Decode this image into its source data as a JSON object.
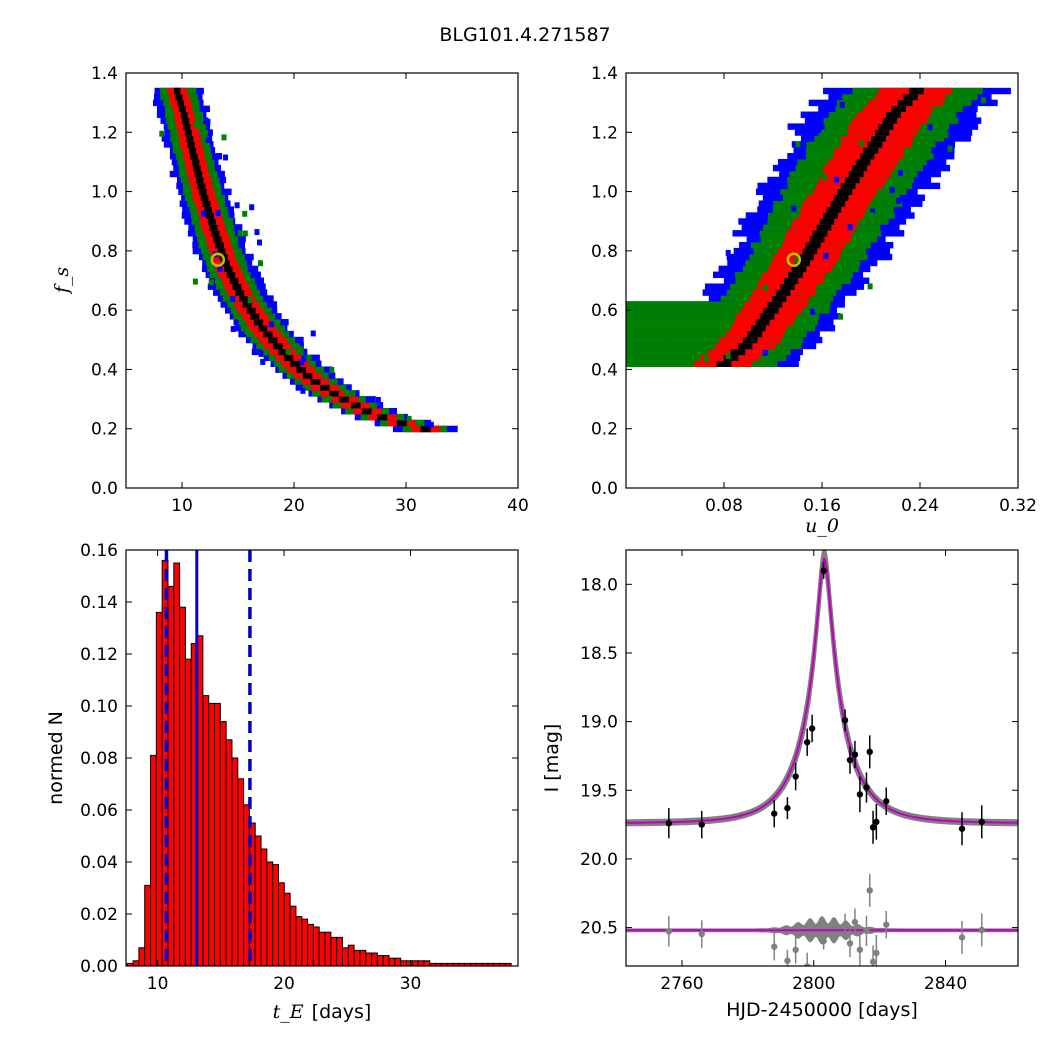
{
  "figure": {
    "title": "BLG101.4.271587",
    "colors": {
      "sigma3": "#0000ff",
      "sigma2": "#008000",
      "sigma1": "#ff0000",
      "core": "#000000",
      "best_fit_marker": "#bfbf00",
      "hist_fill": "#ff0000",
      "hist_line": "#0000bf",
      "model": "#bf00bf",
      "model_band": "#808080",
      "residual": "#808080"
    }
  },
  "chart_data": [
    {
      "id": "fs_vs_tE",
      "type": "heatmap",
      "xlim": [
        5,
        40
      ],
      "ylim": [
        0.0,
        1.4
      ],
      "xticks": [
        10,
        20,
        30,
        40
      ],
      "yticks": [
        0.0,
        0.2,
        0.4,
        0.6,
        0.8,
        1.0,
        1.2,
        1.4
      ],
      "xtick_labels": [
        "10",
        "20",
        "30",
        "40"
      ],
      "ytick_labels": [
        "0.0",
        "0.2",
        "0.4",
        "0.6",
        "0.8",
        "1.0",
        "1.2",
        "1.4"
      ],
      "xlabel": "",
      "ylabel": "f_s",
      "curve_center": [
        [
          9.5,
          1.34
        ],
        [
          10.2,
          1.25
        ],
        [
          11.0,
          1.12
        ],
        [
          11.8,
          1.0
        ],
        [
          12.8,
          0.87
        ],
        [
          14.0,
          0.74
        ],
        [
          15.3,
          0.64
        ],
        [
          17.0,
          0.54
        ],
        [
          19.0,
          0.45
        ],
        [
          21.5,
          0.36
        ],
        [
          24.0,
          0.3
        ],
        [
          27.0,
          0.24
        ],
        [
          30.5,
          0.2
        ],
        [
          33.0,
          0.18
        ]
      ],
      "contour_half_widths": {
        "core": [
          0.45,
          0.3
        ],
        "sigma1": [
          1.3,
          0.9
        ],
        "sigma2": [
          2.0,
          1.6
        ],
        "sigma3": [
          2.6,
          2.2
        ]
      },
      "best_fit": {
        "x": 13.2,
        "y": 0.77
      }
    },
    {
      "id": "fs_vs_u0",
      "type": "heatmap",
      "xlim": [
        0.0,
        0.32
      ],
      "ylim": [
        0.0,
        1.4
      ],
      "xticks": [
        0.08,
        0.16,
        0.24,
        0.32
      ],
      "yticks": [
        0.0,
        0.2,
        0.4,
        0.6,
        0.8,
        1.0,
        1.2,
        1.4
      ],
      "xtick_labels": [
        "0.08",
        "0.16",
        "0.24",
        "0.32"
      ],
      "ytick_labels": [
        "0.0",
        "0.2",
        "0.4",
        "0.6",
        "0.8",
        "1.0",
        "1.2",
        "1.4"
      ],
      "xlabel": "u_0",
      "ylabel": "",
      "curve_center": [
        [
          0.0,
          0.42
        ],
        [
          0.04,
          0.42
        ],
        [
          0.08,
          0.41
        ],
        [
          0.1,
          0.48
        ],
        [
          0.12,
          0.6
        ],
        [
          0.14,
          0.72
        ],
        [
          0.16,
          0.86
        ],
        [
          0.18,
          1.0
        ],
        [
          0.2,
          1.13
        ],
        [
          0.22,
          1.26
        ],
        [
          0.24,
          1.34
        ]
      ],
      "contour_half_widths": {
        "core": [
          0.006,
          0.006
        ],
        "sigma1": [
          0.022,
          0.03
        ],
        "sigma2": [
          0.04,
          0.055
        ],
        "sigma3": [
          0.05,
          0.075
        ]
      },
      "best_fit": {
        "x": 0.137,
        "y": 0.77
      }
    },
    {
      "id": "tE_histogram",
      "type": "bar",
      "xlim": [
        7.5,
        38.5
      ],
      "ylim": [
        0.0,
        0.16
      ],
      "xticks": [
        10,
        20,
        30
      ],
      "yticks": [
        0.0,
        0.02,
        0.04,
        0.06,
        0.08,
        0.1,
        0.12,
        0.14,
        0.16
      ],
      "xtick_labels": [
        "10",
        "20",
        "30"
      ],
      "ytick_labels": [
        "0.00",
        "0.02",
        "0.04",
        "0.06",
        "0.08",
        "0.10",
        "0.12",
        "0.14",
        "0.16"
      ],
      "xlabel_symbol": "t_E",
      "xlabel_units": "[days]",
      "ylabel": "normed N",
      "bin_start": 7.6,
      "bin_width": 0.46,
      "values": [
        0.001,
        0.002,
        0.007,
        0.031,
        0.081,
        0.136,
        0.156,
        0.146,
        0.155,
        0.138,
        0.118,
        0.124,
        0.127,
        0.104,
        0.101,
        0.101,
        0.094,
        0.087,
        0.08,
        0.072,
        0.062,
        0.055,
        0.05,
        0.045,
        0.04,
        0.039,
        0.032,
        0.028,
        0.023,
        0.019,
        0.018,
        0.016,
        0.015,
        0.013,
        0.013,
        0.011,
        0.011,
        0.007,
        0.008,
        0.006,
        0.006,
        0.005,
        0.005,
        0.004,
        0.004,
        0.003,
        0.003,
        0.002,
        0.002,
        0.002,
        0.002,
        0.002,
        0.001,
        0.001,
        0.001,
        0.001,
        0.001,
        0.001,
        0.001,
        0.001,
        0.001,
        0.001,
        0.001,
        0.001,
        0.001,
        0.001
      ],
      "median": 13.1,
      "interval": [
        10.7,
        17.3
      ]
    },
    {
      "id": "lightcurve",
      "type": "scatter",
      "xlim": [
        2743,
        2862
      ],
      "ylim": [
        20.78,
        17.75
      ],
      "xticks": [
        2760,
        2800,
        2840
      ],
      "yticks": [
        18.0,
        18.5,
        19.0,
        19.5,
        20.0,
        20.5
      ],
      "xtick_labels": [
        "2760",
        "2800",
        "2840"
      ],
      "ytick_labels": [
        "18.0",
        "18.5",
        "19.0",
        "19.5",
        "20.0",
        "20.5"
      ],
      "xlabel": "HJD-2450000 [days]",
      "ylabel": "I [mag]",
      "model": {
        "t0": 2803.2,
        "tE": 13.2,
        "u0": 0.137,
        "fs": 0.77,
        "baseline_mag": 19.74
      },
      "residual_offset": 20.52,
      "points": [
        {
          "x": 2756.0,
          "y": 19.74,
          "err": 0.11
        },
        {
          "x": 2766.0,
          "y": 19.75,
          "err": 0.1
        },
        {
          "x": 2788.0,
          "y": 19.67,
          "err": 0.1
        },
        {
          "x": 2792.0,
          "y": 19.63,
          "err": 0.08
        },
        {
          "x": 2794.5,
          "y": 19.4,
          "err": 0.1
        },
        {
          "x": 2798.0,
          "y": 19.15,
          "err": 0.1
        },
        {
          "x": 2799.5,
          "y": 19.05,
          "err": 0.1
        },
        {
          "x": 2803.0,
          "y": 17.9,
          "err": 0.06
        },
        {
          "x": 2809.5,
          "y": 18.99,
          "err": 0.08
        },
        {
          "x": 2811.0,
          "y": 19.28,
          "err": 0.1
        },
        {
          "x": 2812.5,
          "y": 19.24,
          "err": 0.1
        },
        {
          "x": 2814.0,
          "y": 19.53,
          "err": 0.13
        },
        {
          "x": 2816.0,
          "y": 19.48,
          "err": 0.11
        },
        {
          "x": 2817.0,
          "y": 19.22,
          "err": 0.12
        },
        {
          "x": 2818.0,
          "y": 19.77,
          "err": 0.12
        },
        {
          "x": 2819.0,
          "y": 19.73,
          "err": 0.13
        },
        {
          "x": 2822.0,
          "y": 19.58,
          "err": 0.1
        },
        {
          "x": 2845.0,
          "y": 19.78,
          "err": 0.12
        },
        {
          "x": 2851.0,
          "y": 19.73,
          "err": 0.12
        }
      ]
    }
  ]
}
